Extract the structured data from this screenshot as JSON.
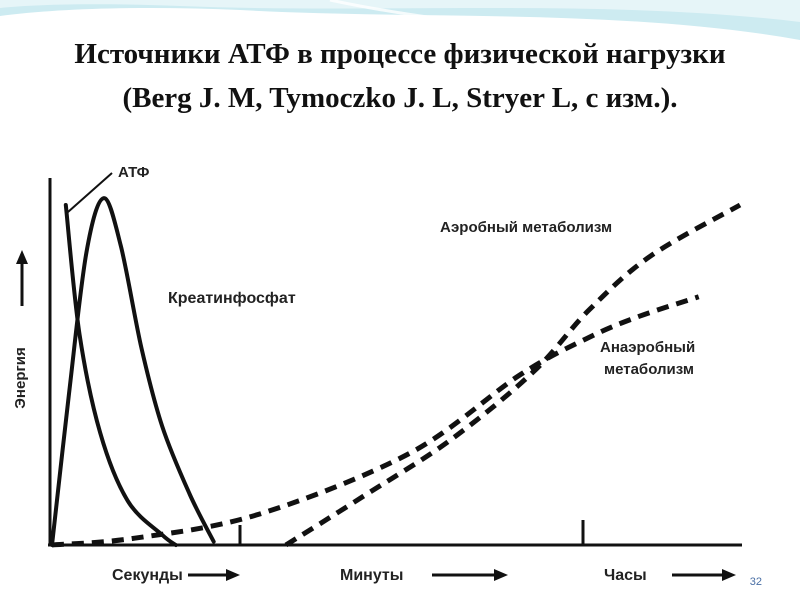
{
  "slide": {
    "title_line1": "Источники АТФ в процессе физической нагрузки",
    "title_line2": "(Berg J. M, Tymoczko J. L, Stryer L, с изм.).",
    "page_number": "32",
    "colors": {
      "header_wave": "#bfe6ee",
      "header_wave_light": "#e3f4f7",
      "ink": "#222222"
    }
  },
  "chart_data": {
    "type": "line",
    "title": "",
    "ylabel": "Энергия",
    "xlabel": "",
    "x_ticks": [
      "Секунды",
      "Минуты",
      "Часы"
    ],
    "grid": false,
    "series": [
      {
        "name": "АТФ",
        "style": "solid",
        "points": [
          [
            0.02,
            1.0
          ],
          [
            0.04,
            0.62
          ],
          [
            0.07,
            0.33
          ],
          [
            0.11,
            0.13
          ],
          [
            0.16,
            0.03
          ],
          [
            0.18,
            0.0
          ]
        ]
      },
      {
        "name": "Креатинфосфат",
        "style": "solid",
        "points": [
          [
            0.0,
            0.0
          ],
          [
            0.025,
            0.45
          ],
          [
            0.05,
            0.86
          ],
          [
            0.075,
            1.02
          ],
          [
            0.1,
            0.88
          ],
          [
            0.13,
            0.58
          ],
          [
            0.16,
            0.35
          ],
          [
            0.2,
            0.15
          ],
          [
            0.235,
            0.01
          ]
        ]
      },
      {
        "name": "Анаэробный метаболизм",
        "style": "dashed",
        "points": [
          [
            0.0,
            0.0
          ],
          [
            0.12,
            0.02
          ],
          [
            0.3,
            0.09
          ],
          [
            0.52,
            0.27
          ],
          [
            0.68,
            0.5
          ],
          [
            0.78,
            0.61
          ],
          [
            0.85,
            0.67
          ],
          [
            0.94,
            0.73
          ]
        ]
      },
      {
        "name": "Аэробный метаболизм",
        "style": "dashed",
        "points": [
          [
            0.34,
            0.0
          ],
          [
            0.45,
            0.14
          ],
          [
            0.58,
            0.31
          ],
          [
            0.7,
            0.51
          ],
          [
            0.78,
            0.69
          ],
          [
            0.87,
            0.85
          ],
          [
            1.0,
            1.0
          ]
        ]
      }
    ]
  }
}
